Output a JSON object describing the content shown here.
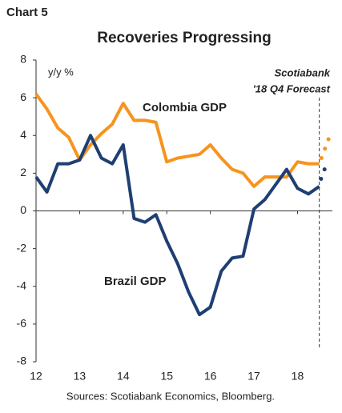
{
  "chart_data": {
    "type": "line",
    "label": "Chart 5",
    "title": "Recoveries Progressing",
    "ylabel": "y/y %",
    "annotations": [
      "Scotiabank",
      "'18 Q4 Forecast"
    ],
    "source": "Sources: Scotiabank Economics, Bloomberg.",
    "x": [
      12,
      12.25,
      12.5,
      12.75,
      13,
      13.25,
      13.5,
      13.75,
      14,
      14.25,
      14.5,
      14.75,
      15,
      15.25,
      15.5,
      15.75,
      16,
      16.25,
      16.5,
      16.75,
      17,
      17.25,
      17.5,
      17.75,
      18,
      18.25,
      18.5
    ],
    "series": [
      {
        "name": "Colombia GDP",
        "color": "#f7941d",
        "values": [
          6.2,
          5.4,
          4.4,
          3.9,
          2.7,
          3.5,
          4.1,
          4.6,
          5.7,
          4.8,
          4.8,
          4.7,
          2.6,
          2.8,
          2.9,
          3.0,
          3.5,
          2.8,
          2.2,
          2.0,
          1.3,
          1.8,
          1.8,
          1.8,
          2.6,
          2.5,
          2.5
        ],
        "forecast": {
          "x": [
            18.55,
            18.63,
            18.71
          ],
          "values": [
            2.8,
            3.3,
            3.8
          ]
        }
      },
      {
        "name": "Brazil GDP",
        "color": "#1f3f73",
        "values": [
          1.8,
          1.0,
          2.5,
          2.5,
          2.7,
          4.0,
          2.8,
          2.5,
          3.5,
          -0.4,
          -0.6,
          -0.2,
          -1.6,
          -2.8,
          -4.3,
          -5.5,
          -5.1,
          -3.2,
          -2.5,
          -2.4,
          0.1,
          0.6,
          1.4,
          2.2,
          1.2,
          0.9,
          1.3
        ],
        "forecast": {
          "x": [
            18.54,
            18.62
          ],
          "values": [
            1.7,
            2.2
          ]
        }
      }
    ],
    "forecast_line_x": 18.5,
    "xlim": [
      12,
      18.8
    ],
    "xticks": [
      12,
      13,
      14,
      15,
      16,
      17,
      18
    ],
    "ylim": [
      -8,
      8
    ],
    "yticks": [
      -8,
      -6,
      -4,
      -2,
      0,
      2,
      4,
      6,
      8
    ]
  }
}
